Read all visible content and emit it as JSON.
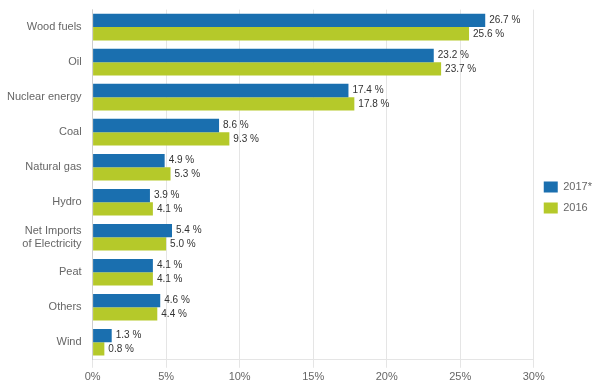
{
  "chart_data": {
    "type": "bar",
    "orientation": "horizontal",
    "categories": [
      "Wood fuels",
      "Oil",
      "Nuclear energy",
      "Coal",
      "Natural gas",
      "Hydro",
      "Net Imports\nof Electricity",
      "Peat",
      "Others",
      "Wind"
    ],
    "series": [
      {
        "name": "2017*",
        "color": "#1a6faf",
        "values": [
          26.7,
          23.2,
          17.4,
          8.6,
          4.9,
          3.9,
          5.4,
          4.1,
          4.6,
          1.3
        ],
        "value_labels": [
          "26.7 %",
          "23.2 %",
          "17.4 %",
          "8.6 %",
          "4.9 %",
          "3.9 %",
          "5.4 %",
          "4.1 %",
          "4.6 %",
          "1.3 %"
        ]
      },
      {
        "name": "2016",
        "color": "#b5c92a",
        "values": [
          25.6,
          23.7,
          17.8,
          9.3,
          5.3,
          4.1,
          5.0,
          4.1,
          4.4,
          0.8
        ],
        "value_labels": [
          "25.6 %",
          "23.7 %",
          "17.8 %",
          "9.3 %",
          "5.3 %",
          "4.1 %",
          "5.0 %",
          "4.1 %",
          "4.4 %",
          "0.8 %"
        ]
      }
    ],
    "xlim": [
      0,
      30
    ],
    "xticks": [
      {
        "value": 0,
        "label": "0%"
      },
      {
        "value": 5,
        "label": "5%"
      },
      {
        "value": 10,
        "label": "10%"
      },
      {
        "value": 15,
        "label": "15%"
      },
      {
        "value": 20,
        "label": "20%"
      },
      {
        "value": 25,
        "label": "25%"
      },
      {
        "value": 30,
        "label": "30%"
      }
    ],
    "grid": true,
    "data_labels": true,
    "legend": "right"
  }
}
